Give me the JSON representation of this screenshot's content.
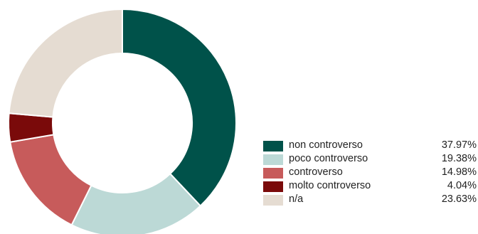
{
  "chart_data": {
    "type": "pie",
    "title": "",
    "donut": true,
    "legend_position": "right",
    "categories": [
      "non controverso",
      "poco controverso",
      "controverso",
      "molto controverso",
      "n/a"
    ],
    "values": [
      37.97,
      19.38,
      14.98,
      4.04,
      23.63
    ],
    "value_labels": [
      "37.97%",
      "19.38%",
      "14.98%",
      "4.04%",
      "23.63%"
    ],
    "colors": [
      "#00524a",
      "#bcd9d6",
      "#c75b5b",
      "#7a0a0a",
      "#e5dcd2"
    ]
  }
}
